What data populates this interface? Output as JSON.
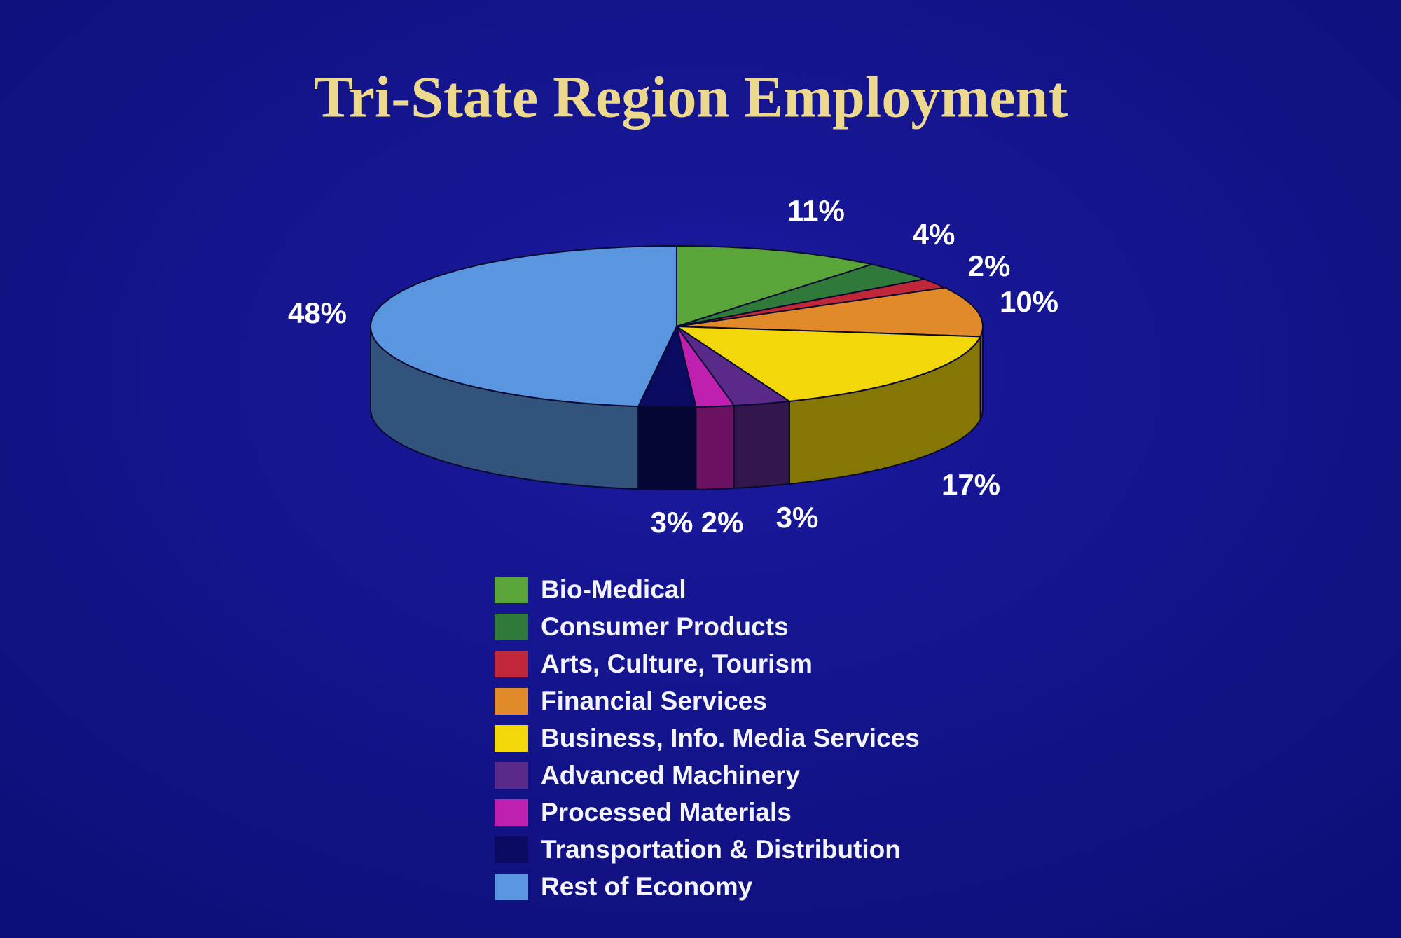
{
  "chart_data": {
    "type": "pie",
    "title": "Tri-State Region Employment",
    "categories": [
      "Bio-Medical",
      "Consumer Products",
      "Arts, Culture, Tourism",
      "Financial Services",
      "Business, Info. Media Services",
      "Advanced Machinery",
      "Processed Materials",
      "Transportation & Distribution",
      "Rest of Economy"
    ],
    "values": [
      11,
      4,
      2,
      10,
      17,
      3,
      2,
      3,
      48
    ],
    "value_labels": [
      "11%",
      "4%",
      "2%",
      "10%",
      "17%",
      "3%",
      "2%",
      "3%",
      "48%"
    ],
    "colors": [
      "#5aa53a",
      "#2f7a3a",
      "#c0283a",
      "#e08a2a",
      "#f2d80a",
      "#5a2a8a",
      "#c020b0",
      "#0a0a60",
      "#5a96e0"
    ]
  }
}
